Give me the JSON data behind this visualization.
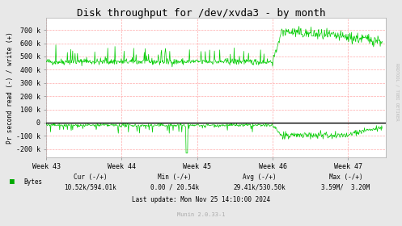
{
  "title": "Disk throughput for /dev/xvda3 - by month",
  "ylabel": "Pr second read (-) / write (+)",
  "xlabel_ticks": [
    "Week 43",
    "Week 44",
    "Week 45",
    "Week 46",
    "Week 47"
  ],
  "yticks": [
    -200000,
    -100000,
    0,
    100000,
    200000,
    300000,
    400000,
    500000,
    600000,
    700000
  ],
  "ytick_labels": [
    "-200 k",
    "-100 k",
    "0",
    "100 k",
    "200 k",
    "300 k",
    "400 k",
    "500 k",
    "600 k",
    "700 k"
  ],
  "ylim": [
    -260000,
    790000
  ],
  "bg_color": "#e8e8e8",
  "plot_bg_color": "#ffffff",
  "grid_color": "#ffaaaa",
  "line_color": "#00cc00",
  "legend_color": "#00aa00",
  "title_fontsize": 9,
  "axis_fontsize": 6,
  "ylabel_fontsize": 5.5,
  "stats_fontsize": 5.5,
  "munin_fontsize": 5,
  "rrdtool_text": "RRDTOOL / TOBI OETIKER",
  "last_update": "Last update: Mon Nov 25 14:10:00 2024",
  "munin_version": "Munin 2.0.33-1",
  "n_points": 700
}
